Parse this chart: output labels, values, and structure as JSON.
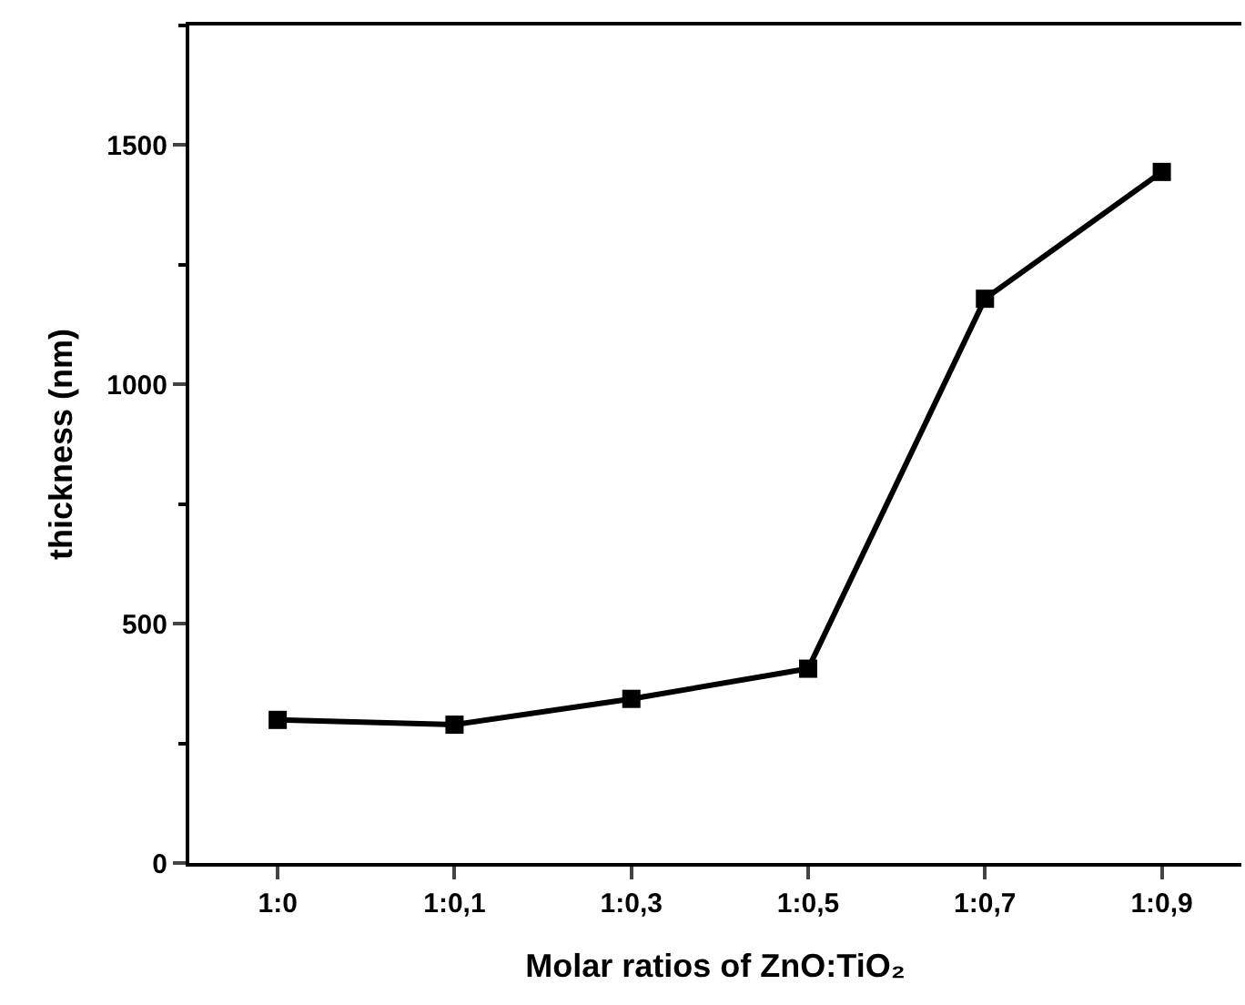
{
  "chart_data": {
    "type": "line",
    "xlabel": "Molar ratios of ZnO:TiO₂",
    "ylabel": "thickness (nm)",
    "categories": [
      "1:0",
      "1:0,1",
      "1:0,3",
      "1:0,5",
      "1:0,7",
      "1:0,9"
    ],
    "series": [
      {
        "color": "#000000",
        "values": [
          299,
          289,
          343,
          406,
          1179,
          1444
        ]
      }
    ],
    "ylim": [
      0,
      1750
    ],
    "yticks": [
      0,
      500,
      1000,
      1500
    ],
    "marker": "square",
    "line_style": "solid",
    "grid": false,
    "legend": false
  }
}
